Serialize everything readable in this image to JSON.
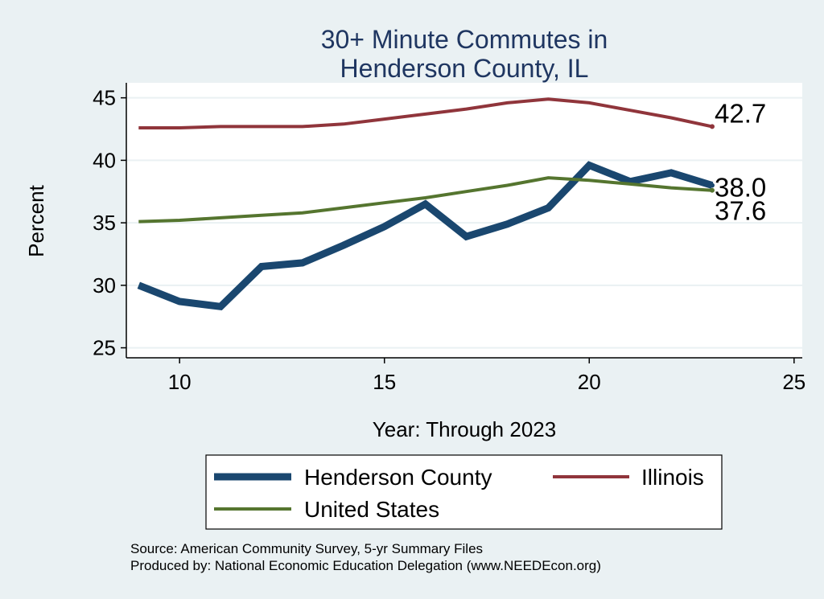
{
  "chart_data": {
    "type": "line",
    "title": [
      "30+ Minute Commutes in",
      "Henderson County, IL"
    ],
    "xlabel": "Year: Through 2023",
    "ylabel": "Percent",
    "xlim": [
      8.7,
      25.2
    ],
    "ylim": [
      24.2,
      46.2
    ],
    "xticks": [
      10,
      15,
      20,
      25
    ],
    "yticks": [
      25,
      30,
      35,
      40,
      45
    ],
    "grid": true,
    "series": [
      {
        "name": "Henderson County",
        "color": "#1a476f",
        "x": [
          9,
          10,
          11,
          12,
          13,
          14,
          15,
          16,
          17,
          18,
          19,
          20,
          21,
          22,
          23
        ],
        "values": [
          30.0,
          28.7,
          28.3,
          31.5,
          31.8,
          33.2,
          34.7,
          36.5,
          33.9,
          34.9,
          36.2,
          39.6,
          38.3,
          39.0,
          38.0
        ],
        "end_label": "38.0"
      },
      {
        "name": "Illinois",
        "color": "#90353b",
        "x": [
          9,
          10,
          11,
          12,
          13,
          14,
          15,
          16,
          17,
          18,
          19,
          20,
          21,
          22,
          23
        ],
        "values": [
          42.6,
          42.6,
          42.7,
          42.7,
          42.7,
          42.9,
          43.3,
          43.7,
          44.1,
          44.6,
          44.9,
          44.6,
          44.0,
          43.4,
          42.7
        ],
        "end_label": "42.7"
      },
      {
        "name": "United States",
        "color": "#55752f",
        "x": [
          9,
          10,
          11,
          12,
          13,
          14,
          15,
          16,
          17,
          18,
          19,
          20,
          21,
          22,
          23
        ],
        "values": [
          35.1,
          35.2,
          35.4,
          35.6,
          35.8,
          36.2,
          36.6,
          37.0,
          37.5,
          38.0,
          38.6,
          38.4,
          38.1,
          37.8,
          37.6
        ],
        "end_label": "37.6"
      }
    ],
    "legend": {
      "placement": "bottom",
      "items": [
        "Henderson County",
        "Illinois",
        "United States"
      ]
    },
    "notes": [
      "Source: American Community Survey, 5-yr Summary Files",
      "Produced by: National Economic Education Delegation (www.NEEDEcon.org)"
    ]
  }
}
